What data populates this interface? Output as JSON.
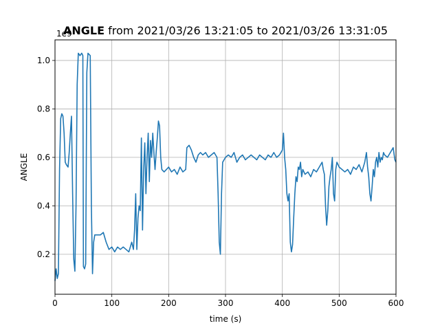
{
  "chart_data": {
    "type": "line",
    "title_bold": "ANGLE",
    "title_rest": " from 2021/03/26 13:21:05 to 2021/03/26 13:31:05",
    "xlabel": "time (s)",
    "ylabel": "ANGLE",
    "offset_label": "1e9",
    "xlim": [
      0,
      600
    ],
    "ylim": [
      0.035,
      1.085
    ],
    "xticks": [
      0,
      100,
      200,
      300,
      400,
      500,
      600
    ],
    "xtick_labels": [
      "0",
      "100",
      "200",
      "300",
      "400",
      "500",
      "600"
    ],
    "yticks": [
      0.2,
      0.4,
      0.6,
      0.8,
      1.0
    ],
    "ytick_labels": [
      "0.2",
      "0.4",
      "0.6",
      "0.8",
      "1.0"
    ],
    "grid": true,
    "legend": "none",
    "series_color": "#1f77b4",
    "series": [
      {
        "values": [
          [
            0,
            0.09
          ],
          [
            2,
            0.14
          ],
          [
            4,
            0.1
          ],
          [
            6,
            0.12
          ],
          [
            8,
            0.55
          ],
          [
            10,
            0.76
          ],
          [
            12,
            0.78
          ],
          [
            14,
            0.77
          ],
          [
            16,
            0.7
          ],
          [
            18,
            0.58
          ],
          [
            20,
            0.57
          ],
          [
            23,
            0.56
          ],
          [
            25,
            0.62
          ],
          [
            27,
            0.7
          ],
          [
            29,
            0.77
          ],
          [
            31,
            0.45
          ],
          [
            33,
            0.18
          ],
          [
            35,
            0.13
          ],
          [
            37,
            0.4
          ],
          [
            39,
            0.9
          ],
          [
            41,
            1.03
          ],
          [
            44,
            1.02
          ],
          [
            47,
            1.03
          ],
          [
            49,
            1.02
          ],
          [
            50,
            0.15
          ],
          [
            52,
            0.14
          ],
          [
            54,
            0.16
          ],
          [
            56,
            0.95
          ],
          [
            58,
            1.03
          ],
          [
            62,
            1.02
          ],
          [
            64,
            0.4
          ],
          [
            66,
            0.12
          ],
          [
            68,
            0.25
          ],
          [
            70,
            0.28
          ],
          [
            75,
            0.28
          ],
          [
            80,
            0.28
          ],
          [
            85,
            0.29
          ],
          [
            90,
            0.25
          ],
          [
            95,
            0.22
          ],
          [
            100,
            0.23
          ],
          [
            105,
            0.21
          ],
          [
            110,
            0.23
          ],
          [
            115,
            0.22
          ],
          [
            120,
            0.23
          ],
          [
            125,
            0.22
          ],
          [
            130,
            0.21
          ],
          [
            135,
            0.25
          ],
          [
            138,
            0.22
          ],
          [
            140,
            0.3
          ],
          [
            142,
            0.45
          ],
          [
            144,
            0.22
          ],
          [
            146,
            0.35
          ],
          [
            148,
            0.4
          ],
          [
            150,
            0.38
          ],
          [
            152,
            0.68
          ],
          [
            154,
            0.3
          ],
          [
            156,
            0.55
          ],
          [
            158,
            0.66
          ],
          [
            160,
            0.45
          ],
          [
            162,
            0.6
          ],
          [
            164,
            0.7
          ],
          [
            166,
            0.5
          ],
          [
            168,
            0.67
          ],
          [
            170,
            0.6
          ],
          [
            172,
            0.7
          ],
          [
            174,
            0.62
          ],
          [
            176,
            0.55
          ],
          [
            178,
            0.62
          ],
          [
            180,
            0.68
          ],
          [
            182,
            0.75
          ],
          [
            184,
            0.73
          ],
          [
            186,
            0.6
          ],
          [
            188,
            0.55
          ],
          [
            192,
            0.54
          ],
          [
            196,
            0.55
          ],
          [
            200,
            0.56
          ],
          [
            205,
            0.54
          ],
          [
            210,
            0.55
          ],
          [
            215,
            0.53
          ],
          [
            220,
            0.56
          ],
          [
            225,
            0.54
          ],
          [
            230,
            0.55
          ],
          [
            232,
            0.64
          ],
          [
            236,
            0.65
          ],
          [
            240,
            0.63
          ],
          [
            244,
            0.6
          ],
          [
            248,
            0.58
          ],
          [
            252,
            0.61
          ],
          [
            256,
            0.62
          ],
          [
            260,
            0.61
          ],
          [
            265,
            0.62
          ],
          [
            270,
            0.6
          ],
          [
            275,
            0.61
          ],
          [
            280,
            0.62
          ],
          [
            285,
            0.6
          ],
          [
            287,
            0.45
          ],
          [
            289,
            0.25
          ],
          [
            291,
            0.2
          ],
          [
            293,
            0.45
          ],
          [
            295,
            0.58
          ],
          [
            300,
            0.6
          ],
          [
            305,
            0.61
          ],
          [
            310,
            0.6
          ],
          [
            315,
            0.62
          ],
          [
            320,
            0.58
          ],
          [
            325,
            0.6
          ],
          [
            330,
            0.61
          ],
          [
            335,
            0.59
          ],
          [
            340,
            0.6
          ],
          [
            345,
            0.61
          ],
          [
            350,
            0.6
          ],
          [
            355,
            0.59
          ],
          [
            360,
            0.61
          ],
          [
            365,
            0.6
          ],
          [
            370,
            0.59
          ],
          [
            375,
            0.61
          ],
          [
            380,
            0.6
          ],
          [
            385,
            0.62
          ],
          [
            390,
            0.6
          ],
          [
            395,
            0.61
          ],
          [
            400,
            0.63
          ],
          [
            402,
            0.7
          ],
          [
            404,
            0.6
          ],
          [
            406,
            0.55
          ],
          [
            408,
            0.45
          ],
          [
            410,
            0.42
          ],
          [
            412,
            0.45
          ],
          [
            414,
            0.25
          ],
          [
            416,
            0.21
          ],
          [
            418,
            0.24
          ],
          [
            420,
            0.35
          ],
          [
            422,
            0.45
          ],
          [
            424,
            0.52
          ],
          [
            426,
            0.5
          ],
          [
            428,
            0.56
          ],
          [
            430,
            0.55
          ],
          [
            432,
            0.58
          ],
          [
            434,
            0.52
          ],
          [
            436,
            0.55
          ],
          [
            440,
            0.53
          ],
          [
            445,
            0.54
          ],
          [
            450,
            0.52
          ],
          [
            455,
            0.55
          ],
          [
            460,
            0.54
          ],
          [
            465,
            0.56
          ],
          [
            470,
            0.58
          ],
          [
            472,
            0.55
          ],
          [
            474,
            0.53
          ],
          [
            476,
            0.4
          ],
          [
            478,
            0.32
          ],
          [
            480,
            0.38
          ],
          [
            482,
            0.48
          ],
          [
            484,
            0.52
          ],
          [
            486,
            0.55
          ],
          [
            488,
            0.6
          ],
          [
            490,
            0.45
          ],
          [
            492,
            0.42
          ],
          [
            494,
            0.55
          ],
          [
            496,
            0.58
          ],
          [
            500,
            0.56
          ],
          [
            505,
            0.55
          ],
          [
            510,
            0.54
          ],
          [
            515,
            0.55
          ],
          [
            520,
            0.53
          ],
          [
            525,
            0.56
          ],
          [
            530,
            0.55
          ],
          [
            535,
            0.57
          ],
          [
            540,
            0.54
          ],
          [
            545,
            0.58
          ],
          [
            548,
            0.62
          ],
          [
            550,
            0.56
          ],
          [
            552,
            0.52
          ],
          [
            554,
            0.45
          ],
          [
            556,
            0.42
          ],
          [
            558,
            0.48
          ],
          [
            560,
            0.55
          ],
          [
            562,
            0.52
          ],
          [
            564,
            0.58
          ],
          [
            566,
            0.6
          ],
          [
            568,
            0.56
          ],
          [
            570,
            0.62
          ],
          [
            572,
            0.58
          ],
          [
            574,
            0.6
          ],
          [
            576,
            0.59
          ],
          [
            578,
            0.62
          ],
          [
            580,
            0.61
          ],
          [
            585,
            0.6
          ],
          [
            590,
            0.62
          ],
          [
            595,
            0.64
          ],
          [
            598,
            0.59
          ],
          [
            600,
            0.58
          ]
        ]
      }
    ]
  }
}
